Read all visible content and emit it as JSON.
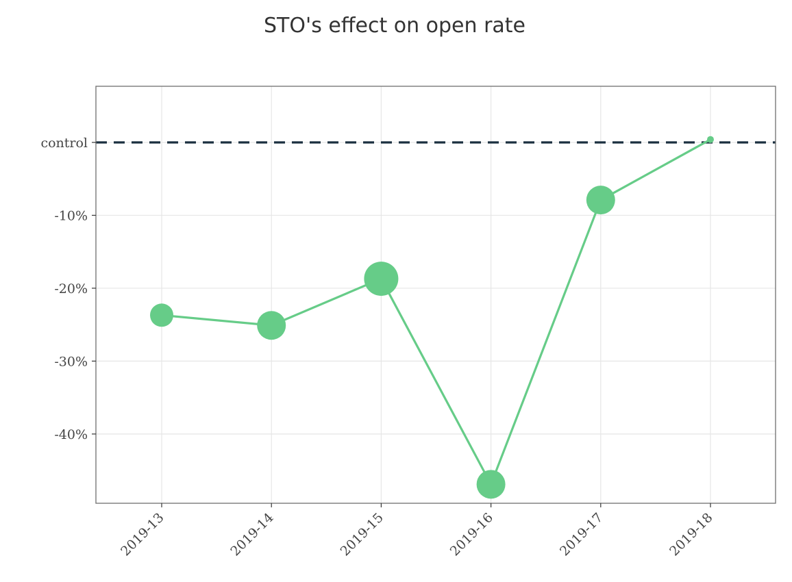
{
  "chart_data": {
    "type": "line",
    "title": "STO's effect on open rate",
    "categories": [
      "2019-13",
      "2019-14",
      "2019-15",
      "2019-16",
      "2019-17",
      "2019-18"
    ],
    "values": [
      -23.7,
      -25.1,
      -18.7,
      -46.9,
      -7.9,
      0.4
    ],
    "point_size_rank": [
      3,
      4,
      5,
      4,
      4,
      1
    ],
    "reference_line": {
      "value": 0,
      "label": "control",
      "style": "dashed",
      "color": "#1a2f3f"
    },
    "yticks": [
      {
        "value": 0,
        "label": "control"
      },
      {
        "value": -10,
        "label": "-10%"
      },
      {
        "value": -20,
        "label": "-20%"
      },
      {
        "value": -30,
        "label": "-30%"
      },
      {
        "value": -40,
        "label": "-40%"
      }
    ],
    "ylim": [
      -49.5,
      7.7
    ],
    "xlabel": "",
    "ylabel": "",
    "grid": true,
    "legend": "none",
    "series_color": "#66cc88",
    "x_tick_rotation": -45
  }
}
